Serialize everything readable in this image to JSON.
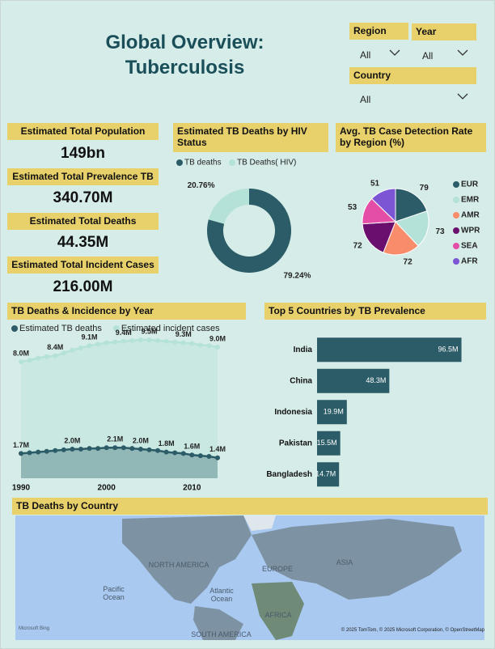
{
  "header": {
    "title": "Global Overview: Tuberculosis"
  },
  "filters": [
    {
      "label": "Region",
      "value": "All"
    },
    {
      "label": "Year",
      "value": "All"
    },
    {
      "label": "Country",
      "value": "All"
    }
  ],
  "kpis": [
    {
      "label": "Estimated Total Population",
      "value": "149bn"
    },
    {
      "label": "Estimated Total Prevalence TB",
      "value": "340.70M"
    },
    {
      "label": "Estimated Total Deaths",
      "value": "44.35M"
    },
    {
      "label": "Estimated Total Incident Cases",
      "value": "216.00M"
    }
  ],
  "chart_data": [
    {
      "type": "donut",
      "title": "Estimated TB Deaths by HIV Status",
      "categories": [
        "TB deaths",
        "TB Deaths( HIV)"
      ],
      "values": [
        79.24,
        20.76
      ],
      "value_labels": [
        "79.24%",
        "20.76%"
      ],
      "colors": [
        "#2b5c67",
        "#b4e2d8"
      ]
    },
    {
      "type": "pie",
      "title": "Avg. TB Case Detection Rate by Region (%)",
      "categories": [
        "EUR",
        "EMR",
        "AMR",
        "WPR",
        "SEA",
        "AFR"
      ],
      "values": [
        79,
        73,
        72,
        72,
        53,
        51
      ],
      "colors": [
        "#2b5c67",
        "#b4e2d8",
        "#f98d6b",
        "#6b0f6e",
        "#e54ea7",
        "#7b55d4"
      ]
    },
    {
      "type": "line",
      "title": "TB Deaths & Incidence by Year",
      "x": [
        1990,
        1991,
        1992,
        1993,
        1994,
        1995,
        1996,
        1997,
        1998,
        1999,
        2000,
        2001,
        2002,
        2003,
        2004,
        2005,
        2006,
        2007,
        2008,
        2009,
        2010,
        2011,
        2012,
        2013
      ],
      "xlim": [
        1990,
        2013
      ],
      "xticks": [
        1990,
        2000,
        2010
      ],
      "ylim": [
        0,
        10
      ],
      "area": true,
      "series": [
        {
          "name": "Estimated TB deaths",
          "color": "#2b5c67",
          "values": [
            1.7,
            1.75,
            1.8,
            1.85,
            1.9,
            1.95,
            2.0,
            2.0,
            2.05,
            2.05,
            2.1,
            2.1,
            2.1,
            2.05,
            2.0,
            1.95,
            1.9,
            1.8,
            1.75,
            1.7,
            1.6,
            1.55,
            1.5,
            1.4
          ],
          "value_labels": [
            "1.7M",
            null,
            null,
            null,
            null,
            null,
            "2.0M",
            null,
            null,
            null,
            null,
            "2.1M",
            null,
            null,
            "2.0M",
            null,
            null,
            "1.8M",
            null,
            null,
            "1.6M",
            null,
            null,
            "1.4M"
          ]
        },
        {
          "name": "Estimated incident cases",
          "color": "#b4e2d8",
          "values": [
            8.0,
            8.1,
            8.25,
            8.35,
            8.4,
            8.6,
            8.8,
            8.95,
            9.1,
            9.2,
            9.3,
            9.35,
            9.4,
            9.45,
            9.5,
            9.5,
            9.45,
            9.4,
            9.35,
            9.3,
            9.25,
            9.15,
            9.1,
            9.0
          ],
          "value_labels": [
            "8.0M",
            null,
            null,
            null,
            "8.4M",
            null,
            null,
            null,
            "9.1M",
            null,
            null,
            null,
            "9.4M",
            null,
            null,
            "9.5M",
            null,
            null,
            null,
            "9.3M",
            null,
            null,
            null,
            "9.0M"
          ]
        }
      ]
    },
    {
      "type": "bar",
      "orientation": "horizontal",
      "title": "Top 5 Countries by TB Prevalence",
      "categories": [
        "India",
        "China",
        "Indonesia",
        "Pakistan",
        "Bangladesh"
      ],
      "values": [
        96.5,
        48.3,
        19.9,
        15.5,
        14.7
      ],
      "value_labels": [
        "96.5M",
        "48.3M",
        "19.9M",
        "15.5M",
        "14.7M"
      ],
      "xlim": [
        0,
        100
      ],
      "color": "#2b5c67"
    }
  ],
  "map": {
    "title": "TB Deaths by Country",
    "labels": [
      "NORTH AMERICA",
      "EUROPE",
      "ASIA",
      "Pacific Ocean",
      "Atlantic Ocean",
      "AFRICA",
      "SOUTH AMERICA"
    ],
    "provider": "Microsoft Bing",
    "attribution": "© 2025 TomTom, © 2025 Microsoft Corporation, © OpenStreetMap"
  }
}
